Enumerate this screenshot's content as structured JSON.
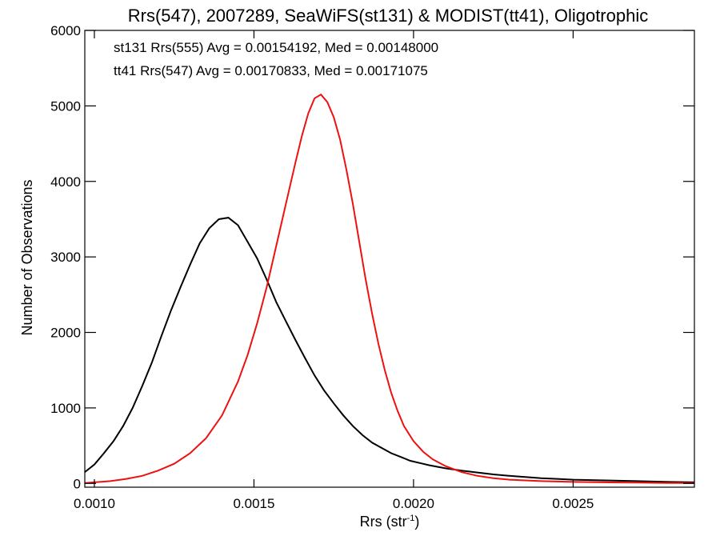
{
  "chart_data": {
    "type": "line",
    "title": "Rrs(547), 2007289, SeaWiFS(st131) & MODIST(tt41), Oligotrophic",
    "xlabel": {
      "text": "Rrs (str",
      "superscript": "-1",
      "suffix": ")"
    },
    "ylabel": "Number of Observations",
    "xlim": [
      0.00097,
      0.00288
    ],
    "ylim": [
      -50,
      6000
    ],
    "x_ticks": [
      {
        "value": 0.001,
        "label": "0.0010"
      },
      {
        "value": 0.0015,
        "label": "0.0015"
      },
      {
        "value": 0.002,
        "label": "0.0020"
      },
      {
        "value": 0.0025,
        "label": "0.0025"
      }
    ],
    "y_ticks": [
      {
        "value": 0,
        "label": "0"
      },
      {
        "value": 1000,
        "label": "1000"
      },
      {
        "value": 2000,
        "label": "2000"
      },
      {
        "value": 3000,
        "label": "3000"
      },
      {
        "value": 4000,
        "label": "4000"
      },
      {
        "value": 5000,
        "label": "5000"
      },
      {
        "value": 6000,
        "label": "6000"
      }
    ],
    "grid": false,
    "annotations": [
      {
        "text": "st131 Rrs(555) Avg = 0.00154192, Med = 0.00148000",
        "color": "#000000"
      },
      {
        "text": "tt41 Rrs(547) Avg = 0.00170833, Med = 0.00171075",
        "color": "#ee1111"
      }
    ],
    "series": [
      {
        "color": "#000000",
        "x": [
          0.00097,
          0.001,
          0.00103,
          0.00106,
          0.00109,
          0.00112,
          0.00115,
          0.00118,
          0.00121,
          0.00124,
          0.00127,
          0.0013,
          0.00133,
          0.00136,
          0.00139,
          0.00142,
          0.00145,
          0.00148,
          0.00151,
          0.00154,
          0.00157,
          0.0016,
          0.00163,
          0.00166,
          0.00169,
          0.00172,
          0.00175,
          0.00178,
          0.00181,
          0.00184,
          0.00187,
          0.0019,
          0.00193,
          0.00196,
          0.00199,
          0.00202,
          0.00205,
          0.0021,
          0.00215,
          0.0022,
          0.00225,
          0.0023,
          0.00235,
          0.0024,
          0.00245,
          0.0025,
          0.0026,
          0.0027,
          0.0028,
          0.00288
        ],
        "values": [
          150,
          250,
          400,
          560,
          760,
          1000,
          1290,
          1600,
          1950,
          2290,
          2600,
          2900,
          3180,
          3380,
          3500,
          3520,
          3420,
          3200,
          2980,
          2700,
          2400,
          2150,
          1900,
          1660,
          1430,
          1230,
          1060,
          900,
          760,
          640,
          540,
          470,
          400,
          350,
          300,
          270,
          240,
          200,
          170,
          145,
          120,
          100,
          85,
          70,
          60,
          50,
          40,
          30,
          20,
          15
        ]
      },
      {
        "color": "#ee1111",
        "x": [
          0.00097,
          0.001,
          0.00105,
          0.0011,
          0.00115,
          0.0012,
          0.00125,
          0.0013,
          0.00135,
          0.0014,
          0.00145,
          0.00148,
          0.00151,
          0.00154,
          0.00157,
          0.0016,
          0.00163,
          0.00165,
          0.00167,
          0.00169,
          0.00171,
          0.00173,
          0.00175,
          0.00177,
          0.00179,
          0.00181,
          0.00183,
          0.00185,
          0.00187,
          0.00189,
          0.00191,
          0.00193,
          0.00195,
          0.00197,
          0.002,
          0.00203,
          0.00206,
          0.0021,
          0.00215,
          0.0022,
          0.00225,
          0.0023,
          0.0024,
          0.0025,
          0.0026,
          0.0027,
          0.0028,
          0.00288
        ],
        "values": [
          5,
          15,
          30,
          60,
          100,
          170,
          260,
          400,
          600,
          900,
          1350,
          1700,
          2120,
          2600,
          3150,
          3700,
          4250,
          4600,
          4900,
          5100,
          5150,
          5050,
          4850,
          4550,
          4150,
          3700,
          3200,
          2700,
          2250,
          1850,
          1500,
          1200,
          960,
          760,
          560,
          420,
          320,
          230,
          150,
          100,
          70,
          50,
          30,
          20,
          15,
          10,
          5,
          5
        ]
      }
    ]
  }
}
